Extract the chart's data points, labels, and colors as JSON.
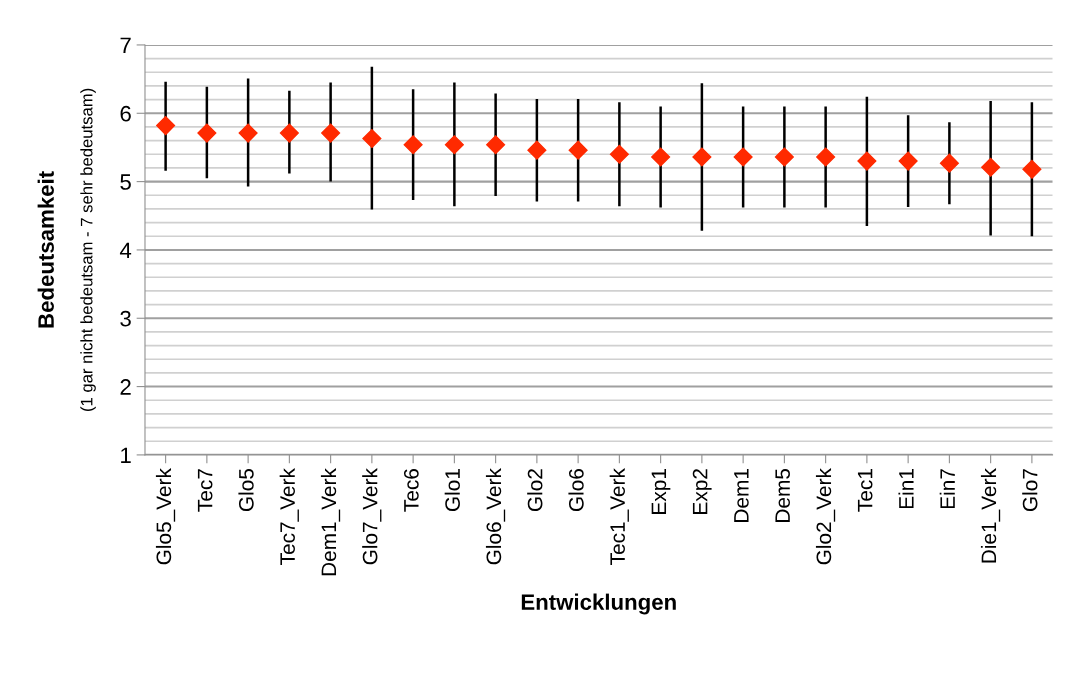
{
  "chart_data": {
    "type": "scatter",
    "xlabel": "Entwicklungen",
    "ylabel": "Bedeutsamkeit",
    "annotations": [
      "(1 gar nicht bedeutsam - 7 sehr bedeutsam)"
    ],
    "categories": [
      "Glo5_Verk",
      "Tec7",
      "Glo5",
      "Tec7_Verk",
      "Dem1_Verk",
      "Glo7_Verk",
      "Tec6",
      "Glo1",
      "Glo6_Verk",
      "Glo2",
      "Glo6",
      "Tec1_Verk",
      "Exp1",
      "Exp2",
      "Dem1",
      "Dem5",
      "Glo2_Verk",
      "Tec1",
      "Ein1",
      "Ein7",
      "Die1_Verk",
      "Glo7"
    ],
    "series": [
      {
        "color": "#ff2a00",
        "values": [
          5.82,
          5.71,
          5.71,
          5.71,
          5.71,
          5.63,
          5.54,
          5.54,
          5.54,
          5.46,
          5.46,
          5.4,
          5.36,
          5.36,
          5.36,
          5.36,
          5.36,
          5.3,
          5.3,
          5.27,
          5.21,
          5.18
        ],
        "errors": [
          [
            5.16,
            6.46
          ],
          [
            5.05,
            6.39
          ],
          [
            4.93,
            6.51
          ],
          [
            5.12,
            6.33
          ],
          [
            5.0,
            6.45
          ],
          [
            4.59,
            6.68
          ],
          [
            4.73,
            6.35
          ],
          [
            4.64,
            6.45
          ],
          [
            4.79,
            6.29
          ],
          [
            4.71,
            6.21
          ],
          [
            4.71,
            6.21
          ],
          [
            4.64,
            6.16
          ],
          [
            4.62,
            6.1
          ],
          [
            4.28,
            6.44
          ],
          [
            4.62,
            6.1
          ],
          [
            4.62,
            6.1
          ],
          [
            4.62,
            6.1
          ],
          [
            4.35,
            6.24
          ],
          [
            4.63,
            5.97
          ],
          [
            4.67,
            5.87
          ],
          [
            4.21,
            6.18
          ],
          [
            4.2,
            6.16
          ]
        ]
      }
    ],
    "ylim": [
      1,
      7
    ],
    "yticks": [
      1,
      2,
      3,
      4,
      5,
      6,
      7
    ],
    "grid": "y",
    "marker": "diamond",
    "legend": false
  }
}
